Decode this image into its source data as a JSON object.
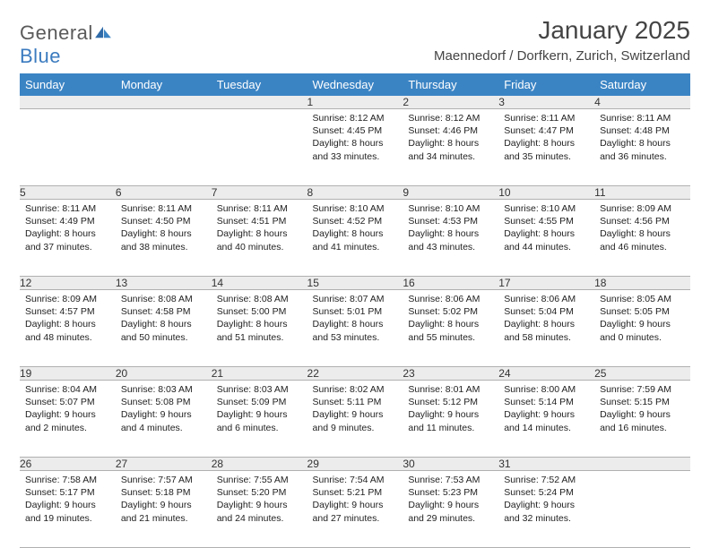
{
  "logo": {
    "word1": "General",
    "word2": "Blue"
  },
  "title": "January 2025",
  "location": "Maennedorf / Dorfkern, Zurich, Switzerland",
  "colors": {
    "header_bg": "#3b84c4",
    "header_fg": "#ffffff",
    "daynum_bg": "#ececec",
    "border": "#b0b0b0",
    "logo_gray": "#5a5a5a",
    "logo_blue": "#3b7bbf"
  },
  "weekdays": [
    "Sunday",
    "Monday",
    "Tuesday",
    "Wednesday",
    "Thursday",
    "Friday",
    "Saturday"
  ],
  "weeks": [
    {
      "nums": [
        "",
        "",
        "",
        "1",
        "2",
        "3",
        "4"
      ],
      "cells": [
        {
          "empty": true
        },
        {
          "empty": true
        },
        {
          "empty": true
        },
        {
          "sunrise": "Sunrise: 8:12 AM",
          "sunset": "Sunset: 4:45 PM",
          "day1": "Daylight: 8 hours",
          "day2": "and 33 minutes."
        },
        {
          "sunrise": "Sunrise: 8:12 AM",
          "sunset": "Sunset: 4:46 PM",
          "day1": "Daylight: 8 hours",
          "day2": "and 34 minutes."
        },
        {
          "sunrise": "Sunrise: 8:11 AM",
          "sunset": "Sunset: 4:47 PM",
          "day1": "Daylight: 8 hours",
          "day2": "and 35 minutes."
        },
        {
          "sunrise": "Sunrise: 8:11 AM",
          "sunset": "Sunset: 4:48 PM",
          "day1": "Daylight: 8 hours",
          "day2": "and 36 minutes."
        }
      ]
    },
    {
      "nums": [
        "5",
        "6",
        "7",
        "8",
        "9",
        "10",
        "11"
      ],
      "cells": [
        {
          "sunrise": "Sunrise: 8:11 AM",
          "sunset": "Sunset: 4:49 PM",
          "day1": "Daylight: 8 hours",
          "day2": "and 37 minutes."
        },
        {
          "sunrise": "Sunrise: 8:11 AM",
          "sunset": "Sunset: 4:50 PM",
          "day1": "Daylight: 8 hours",
          "day2": "and 38 minutes."
        },
        {
          "sunrise": "Sunrise: 8:11 AM",
          "sunset": "Sunset: 4:51 PM",
          "day1": "Daylight: 8 hours",
          "day2": "and 40 minutes."
        },
        {
          "sunrise": "Sunrise: 8:10 AM",
          "sunset": "Sunset: 4:52 PM",
          "day1": "Daylight: 8 hours",
          "day2": "and 41 minutes."
        },
        {
          "sunrise": "Sunrise: 8:10 AM",
          "sunset": "Sunset: 4:53 PM",
          "day1": "Daylight: 8 hours",
          "day2": "and 43 minutes."
        },
        {
          "sunrise": "Sunrise: 8:10 AM",
          "sunset": "Sunset: 4:55 PM",
          "day1": "Daylight: 8 hours",
          "day2": "and 44 minutes."
        },
        {
          "sunrise": "Sunrise: 8:09 AM",
          "sunset": "Sunset: 4:56 PM",
          "day1": "Daylight: 8 hours",
          "day2": "and 46 minutes."
        }
      ]
    },
    {
      "nums": [
        "12",
        "13",
        "14",
        "15",
        "16",
        "17",
        "18"
      ],
      "cells": [
        {
          "sunrise": "Sunrise: 8:09 AM",
          "sunset": "Sunset: 4:57 PM",
          "day1": "Daylight: 8 hours",
          "day2": "and 48 minutes."
        },
        {
          "sunrise": "Sunrise: 8:08 AM",
          "sunset": "Sunset: 4:58 PM",
          "day1": "Daylight: 8 hours",
          "day2": "and 50 minutes."
        },
        {
          "sunrise": "Sunrise: 8:08 AM",
          "sunset": "Sunset: 5:00 PM",
          "day1": "Daylight: 8 hours",
          "day2": "and 51 minutes."
        },
        {
          "sunrise": "Sunrise: 8:07 AM",
          "sunset": "Sunset: 5:01 PM",
          "day1": "Daylight: 8 hours",
          "day2": "and 53 minutes."
        },
        {
          "sunrise": "Sunrise: 8:06 AM",
          "sunset": "Sunset: 5:02 PM",
          "day1": "Daylight: 8 hours",
          "day2": "and 55 minutes."
        },
        {
          "sunrise": "Sunrise: 8:06 AM",
          "sunset": "Sunset: 5:04 PM",
          "day1": "Daylight: 8 hours",
          "day2": "and 58 minutes."
        },
        {
          "sunrise": "Sunrise: 8:05 AM",
          "sunset": "Sunset: 5:05 PM",
          "day1": "Daylight: 9 hours",
          "day2": "and 0 minutes."
        }
      ]
    },
    {
      "nums": [
        "19",
        "20",
        "21",
        "22",
        "23",
        "24",
        "25"
      ],
      "cells": [
        {
          "sunrise": "Sunrise: 8:04 AM",
          "sunset": "Sunset: 5:07 PM",
          "day1": "Daylight: 9 hours",
          "day2": "and 2 minutes."
        },
        {
          "sunrise": "Sunrise: 8:03 AM",
          "sunset": "Sunset: 5:08 PM",
          "day1": "Daylight: 9 hours",
          "day2": "and 4 minutes."
        },
        {
          "sunrise": "Sunrise: 8:03 AM",
          "sunset": "Sunset: 5:09 PM",
          "day1": "Daylight: 9 hours",
          "day2": "and 6 minutes."
        },
        {
          "sunrise": "Sunrise: 8:02 AM",
          "sunset": "Sunset: 5:11 PM",
          "day1": "Daylight: 9 hours",
          "day2": "and 9 minutes."
        },
        {
          "sunrise": "Sunrise: 8:01 AM",
          "sunset": "Sunset: 5:12 PM",
          "day1": "Daylight: 9 hours",
          "day2": "and 11 minutes."
        },
        {
          "sunrise": "Sunrise: 8:00 AM",
          "sunset": "Sunset: 5:14 PM",
          "day1": "Daylight: 9 hours",
          "day2": "and 14 minutes."
        },
        {
          "sunrise": "Sunrise: 7:59 AM",
          "sunset": "Sunset: 5:15 PM",
          "day1": "Daylight: 9 hours",
          "day2": "and 16 minutes."
        }
      ]
    },
    {
      "nums": [
        "26",
        "27",
        "28",
        "29",
        "30",
        "31",
        ""
      ],
      "cells": [
        {
          "sunrise": "Sunrise: 7:58 AM",
          "sunset": "Sunset: 5:17 PM",
          "day1": "Daylight: 9 hours",
          "day2": "and 19 minutes."
        },
        {
          "sunrise": "Sunrise: 7:57 AM",
          "sunset": "Sunset: 5:18 PM",
          "day1": "Daylight: 9 hours",
          "day2": "and 21 minutes."
        },
        {
          "sunrise": "Sunrise: 7:55 AM",
          "sunset": "Sunset: 5:20 PM",
          "day1": "Daylight: 9 hours",
          "day2": "and 24 minutes."
        },
        {
          "sunrise": "Sunrise: 7:54 AM",
          "sunset": "Sunset: 5:21 PM",
          "day1": "Daylight: 9 hours",
          "day2": "and 27 minutes."
        },
        {
          "sunrise": "Sunrise: 7:53 AM",
          "sunset": "Sunset: 5:23 PM",
          "day1": "Daylight: 9 hours",
          "day2": "and 29 minutes."
        },
        {
          "sunrise": "Sunrise: 7:52 AM",
          "sunset": "Sunset: 5:24 PM",
          "day1": "Daylight: 9 hours",
          "day2": "and 32 minutes."
        },
        {
          "empty": true
        }
      ]
    }
  ]
}
